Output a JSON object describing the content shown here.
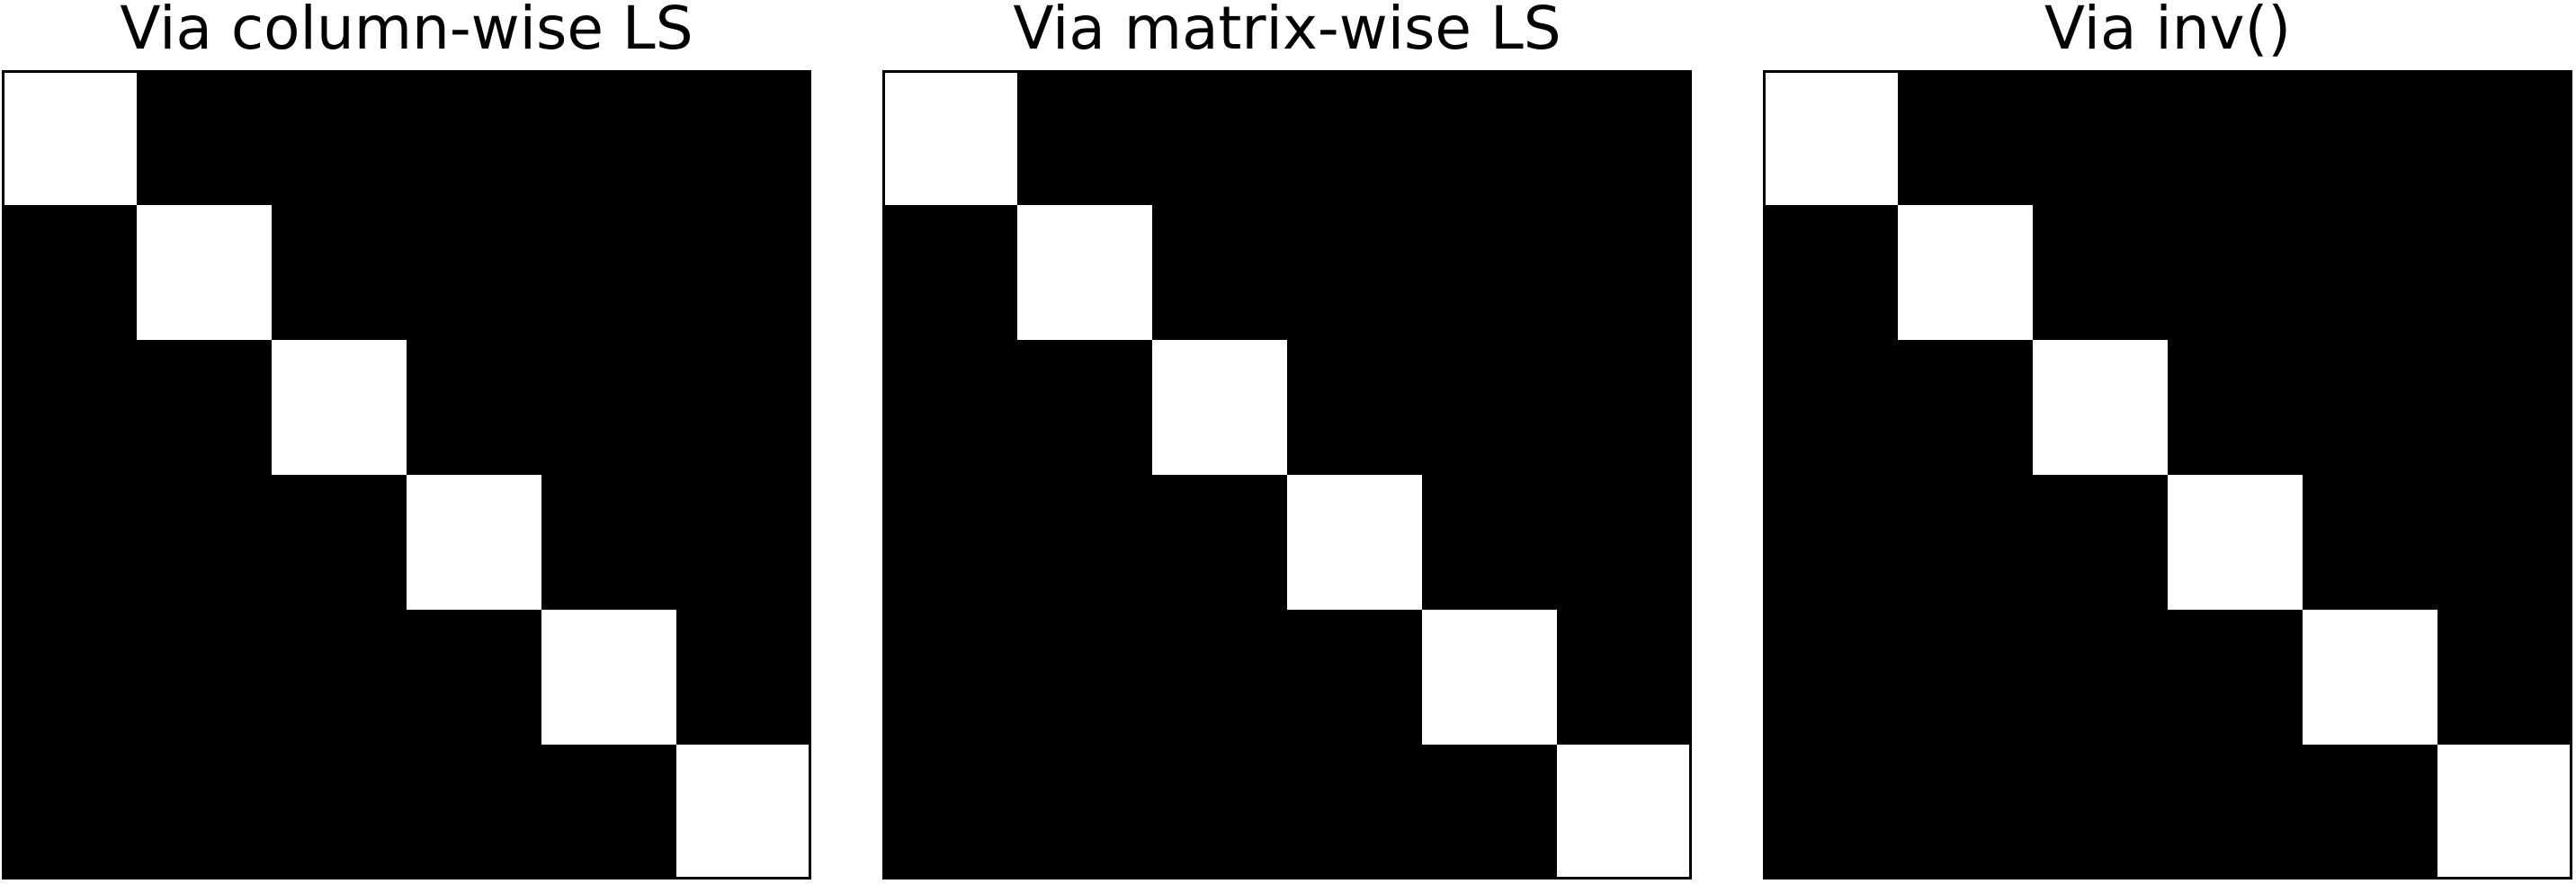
{
  "chart_data": [
    {
      "type": "heatmap",
      "title": "Via column-wise LS",
      "xlabel": "",
      "ylabel": "",
      "grid": false,
      "colormap": "gray",
      "vmin": 0,
      "vmax": 1,
      "matrix": [
        [
          1,
          0,
          0,
          0,
          0,
          0
        ],
        [
          0,
          1,
          0,
          0,
          0,
          0
        ],
        [
          0,
          0,
          1,
          0,
          0,
          0
        ],
        [
          0,
          0,
          0,
          1,
          0,
          0
        ],
        [
          0,
          0,
          0,
          0,
          1,
          0
        ],
        [
          0,
          0,
          0,
          0,
          0,
          1
        ]
      ]
    },
    {
      "type": "heatmap",
      "title": "Via matrix-wise LS",
      "xlabel": "",
      "ylabel": "",
      "grid": false,
      "colormap": "gray",
      "vmin": 0,
      "vmax": 1,
      "matrix": [
        [
          1,
          0,
          0,
          0,
          0,
          0
        ],
        [
          0,
          1,
          0,
          0,
          0,
          0
        ],
        [
          0,
          0,
          1,
          0,
          0,
          0
        ],
        [
          0,
          0,
          0,
          1,
          0,
          0
        ],
        [
          0,
          0,
          0,
          0,
          1,
          0
        ],
        [
          0,
          0,
          0,
          0,
          0,
          1
        ]
      ]
    },
    {
      "type": "heatmap",
      "title": "Via inv()",
      "xlabel": "",
      "ylabel": "",
      "grid": false,
      "colormap": "gray",
      "vmin": 0,
      "vmax": 1,
      "matrix": [
        [
          1,
          0,
          0,
          0,
          0,
          0
        ],
        [
          0,
          1,
          0,
          0,
          0,
          0
        ],
        [
          0,
          0,
          1,
          0,
          0,
          0
        ],
        [
          0,
          0,
          0,
          1,
          0,
          0
        ],
        [
          0,
          0,
          0,
          0,
          1,
          0
        ],
        [
          0,
          0,
          0,
          0,
          0,
          1
        ]
      ]
    }
  ],
  "colors": {
    "low": "#000000",
    "high": "#ffffff",
    "frame": "#000000",
    "background": "#ffffff"
  }
}
